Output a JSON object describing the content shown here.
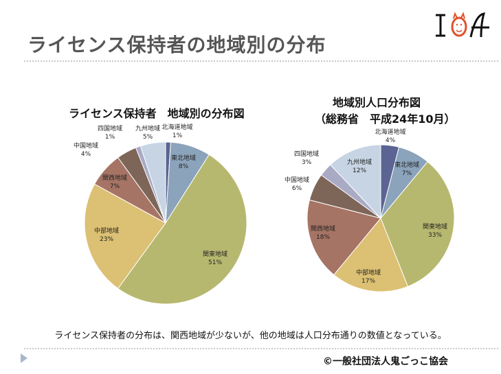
{
  "slide": {
    "title": "ライセンス保持者の地域別の分布",
    "logo_text": "IOA",
    "note": "ライセンス保持者の分布は、関西地域が少ないが、他の地域は人口分布通りの数値となっている。",
    "copyright": "©一般社団法人鬼ごっこ協会"
  },
  "colors": {
    "北海道地域": "#5b6492",
    "東北地域": "#8ba3bb",
    "関東地域": "#b7b86f",
    "中部地域": "#dcc073",
    "関西地域": "#a67465",
    "中国地域": "#7d6558",
    "四国地域": "#a9abc5",
    "九州地域": "#c6d4e3"
  },
  "chart_data": [
    {
      "type": "pie",
      "title": "ライセンス保持者　地域別の分布図",
      "categories": [
        "北海道地域",
        "東北地域",
        "関東地域",
        "中部地域",
        "関西地域",
        "中国地域",
        "四国地域",
        "九州地域"
      ],
      "values": [
        1,
        8,
        51,
        23,
        7,
        4,
        1,
        5
      ],
      "labels": [
        "1%",
        "8%",
        "51%",
        "23%",
        "7%",
        "4%",
        "1%",
        "5%"
      ]
    },
    {
      "type": "pie",
      "title": "地域別人口分布図",
      "subtitle": "（総務省　平成24年10月）",
      "categories": [
        "北海道地域",
        "東北地域",
        "関東地域",
        "中部地域",
        "関西地域",
        "中国地域",
        "四国地域",
        "九州地域"
      ],
      "values": [
        4,
        7,
        33,
        17,
        18,
        6,
        3,
        12
      ],
      "labels": [
        "4%",
        "7%",
        "33%",
        "17%",
        "18%",
        "6%",
        "3%",
        "12%"
      ]
    }
  ]
}
